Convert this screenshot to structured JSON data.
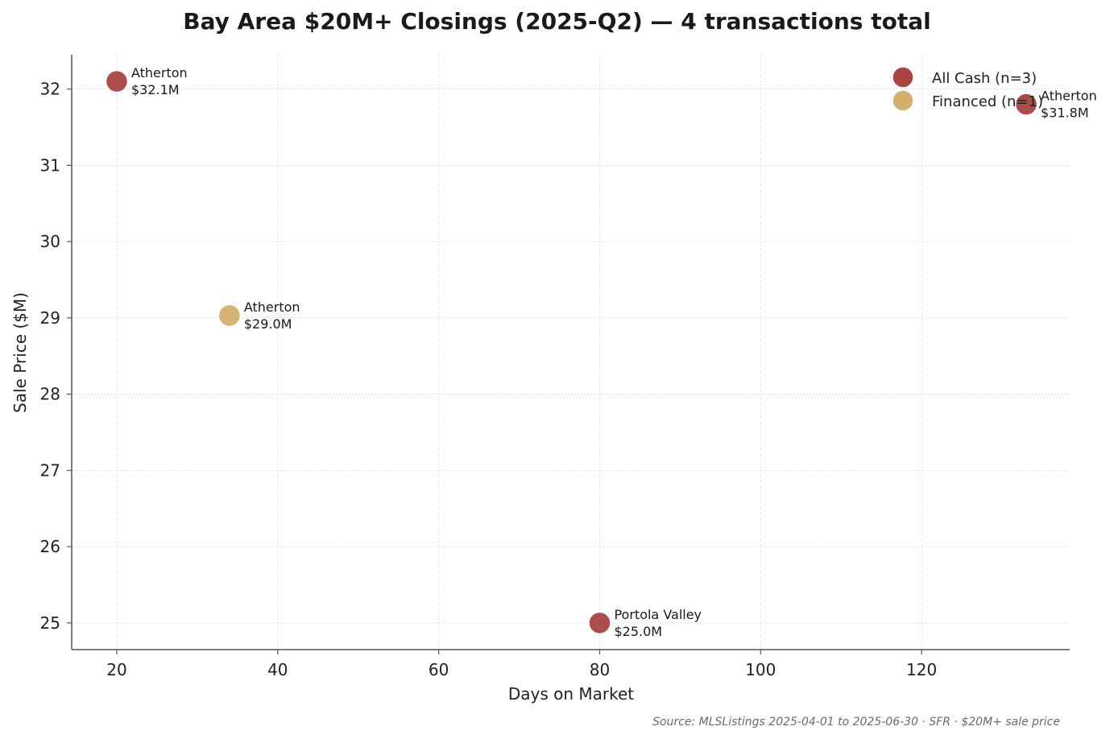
{
  "chart_data": {
    "type": "scatter",
    "title": "Bay Area $20M+ Closings (2025-Q2) — 4 transactions total",
    "xlabel": "Days on Market",
    "ylabel": "Sale Price ($M)",
    "xlim": [
      14.4,
      138.4
    ],
    "ylim": [
      24.65,
      32.45
    ],
    "xticks": [
      20,
      40,
      60,
      80,
      100,
      120
    ],
    "yticks": [
      25,
      26,
      27,
      28,
      29,
      30,
      31,
      32
    ],
    "grid": true,
    "legend_position": "top-right",
    "series": [
      {
        "name": "All Cash (n=3)",
        "color": "#a94442",
        "points": [
          {
            "x": 20,
            "y": 32.1,
            "city": "Atherton",
            "price_label": "$32.1M"
          },
          {
            "x": 133,
            "y": 31.8,
            "city": "Atherton",
            "price_label": "$31.8M"
          },
          {
            "x": 80,
            "y": 25.0,
            "city": "Portola Valley",
            "price_label": "$25.0M"
          }
        ]
      },
      {
        "name": "Financed (n=1)",
        "color": "#d4b06e",
        "points": [
          {
            "x": 34,
            "y": 29.03,
            "city": "Atherton",
            "price_label": "$29.0M"
          }
        ]
      }
    ]
  },
  "source_note": "Source: MLSListings 2025-04-01 to 2025-06-30 · SFR · $20M+ sale price"
}
